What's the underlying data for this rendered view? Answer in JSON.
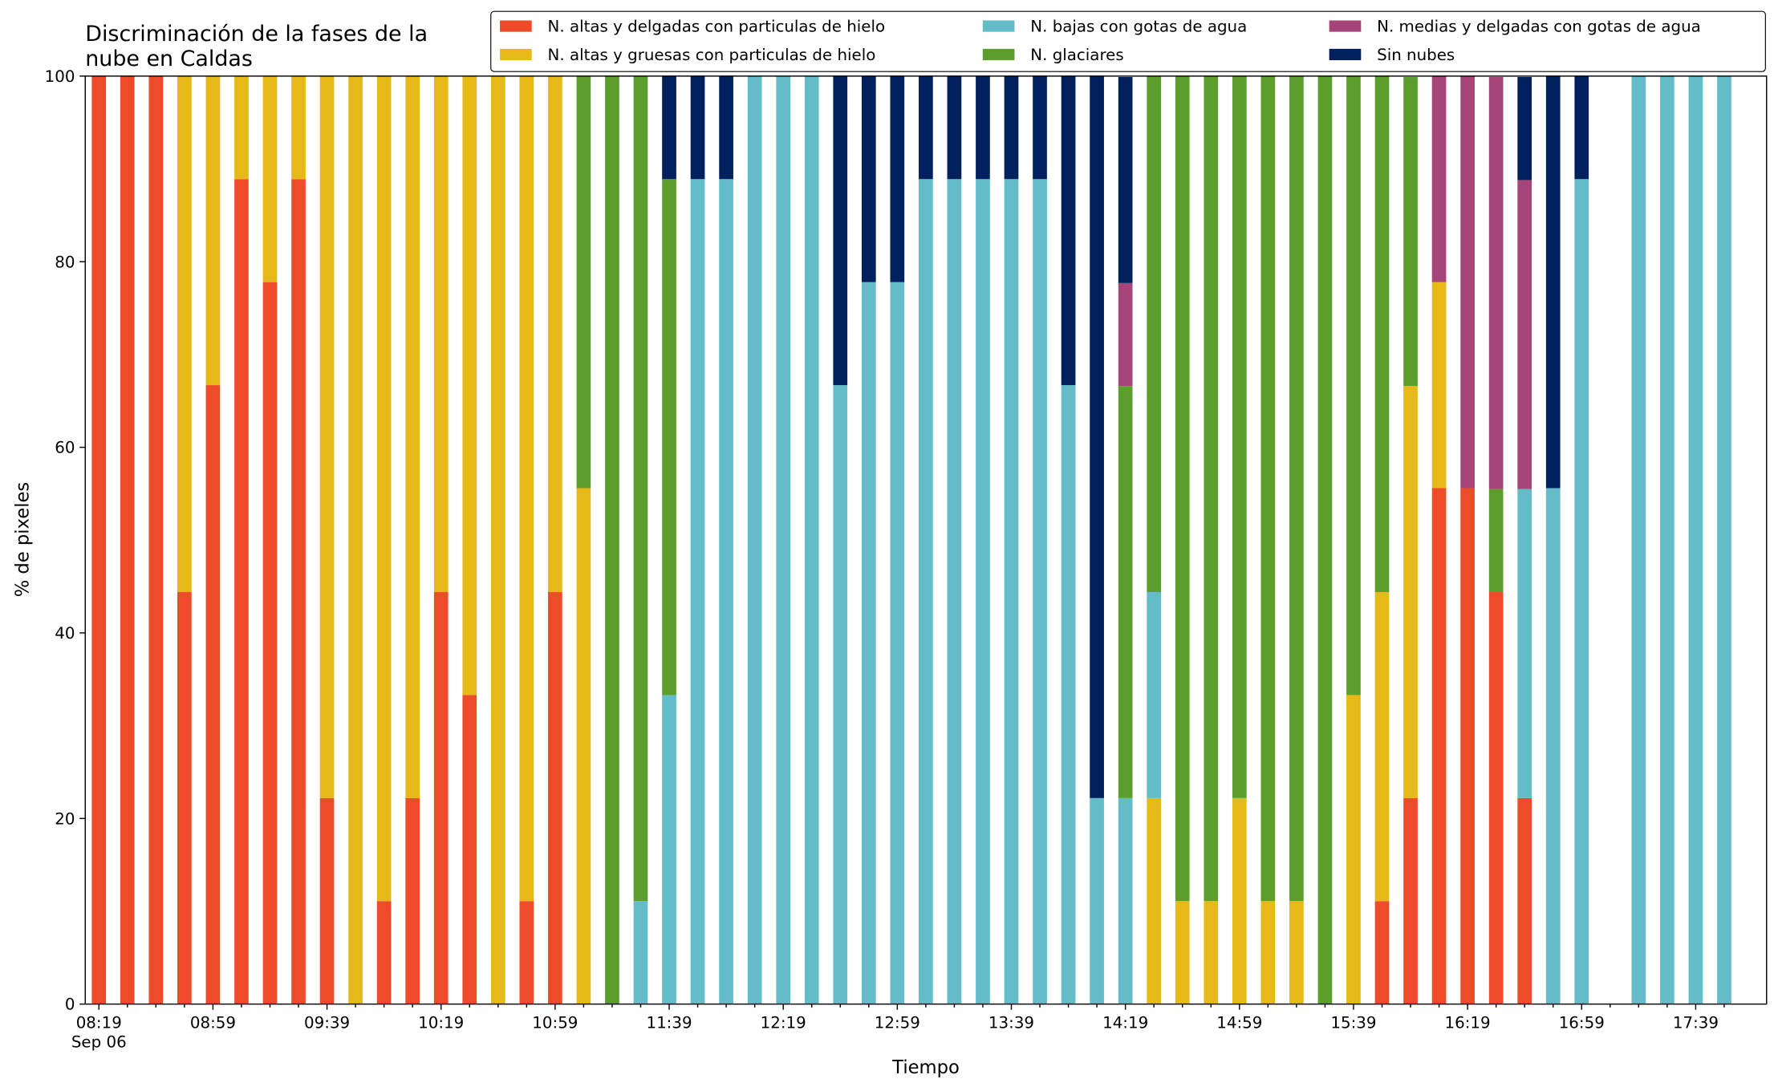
{
  "chart_data": {
    "type": "stacked_bar",
    "title": "Discriminación de la fases de la\nnube en Caldas",
    "xlabel": "Tiempo",
    "ylabel": "% de pixeles",
    "date_label": "Sep 06",
    "categories": [
      "08:19",
      null,
      null,
      null,
      "08:59",
      null,
      null,
      null,
      "09:39",
      null,
      null,
      null,
      "10:19",
      null,
      null,
      null,
      "10:59",
      null,
      null,
      null,
      "11:39",
      null,
      null,
      null,
      "12:19",
      null,
      null,
      null,
      "12:59",
      null,
      null,
      null,
      "13:39",
      null,
      null,
      null,
      "14:19",
      null,
      null,
      null,
      "14:59",
      null,
      null,
      null,
      "15:39",
      null,
      null,
      null,
      "16:19",
      null,
      null,
      null,
      "16:59",
      null,
      null,
      null,
      "17:39",
      null
    ],
    "ylim": [
      0,
      100
    ],
    "yticks": [
      0,
      20,
      40,
      60,
      80,
      100
    ],
    "series": [
      {
        "name": "N. altas y delgadas con particulas de hielo",
        "color": "#ee4b2b",
        "values": [
          100,
          100,
          100,
          44.4,
          66.7,
          88.9,
          77.8,
          88.9,
          22.2,
          0,
          11.1,
          22.2,
          44.4,
          33.3,
          0,
          11.1,
          44.4,
          0,
          0,
          0,
          0,
          0,
          0,
          0,
          0,
          0,
          0,
          0,
          0,
          0,
          0,
          0,
          0,
          0,
          0,
          0,
          0,
          0,
          0,
          0,
          0,
          0,
          0,
          0,
          0,
          11.1,
          22.2,
          55.6,
          55.6,
          44.4,
          22.2,
          0,
          0,
          0,
          0,
          0,
          0,
          0
        ]
      },
      {
        "name": "N. altas y gruesas con particulas de hielo",
        "color": "#e6b818",
        "values": [
          0,
          0,
          0,
          55.6,
          33.3,
          11.1,
          22.2,
          11.1,
          77.8,
          100,
          88.9,
          77.8,
          55.6,
          66.7,
          100,
          88.9,
          55.6,
          55.6,
          0,
          0,
          0,
          0,
          0,
          0,
          0,
          0,
          0,
          0,
          0,
          0,
          0,
          0,
          0,
          0,
          0,
          0,
          0,
          22.2,
          11.1,
          11.1,
          22.2,
          11.1,
          11.1,
          0,
          33.3,
          33.3,
          44.4,
          22.2,
          0,
          0,
          0,
          0,
          0,
          0,
          0,
          0,
          0,
          0
        ]
      },
      {
        "name": "N. bajas con gotas de agua",
        "color": "#62bdc8",
        "values": [
          0,
          0,
          0,
          0,
          0,
          0,
          0,
          0,
          0,
          0,
          0,
          0,
          0,
          0,
          0,
          0,
          0,
          0,
          0,
          11.1,
          33.3,
          88.9,
          88.9,
          100,
          100,
          100,
          66.7,
          77.8,
          77.8,
          88.9,
          88.9,
          88.9,
          88.9,
          88.9,
          66.7,
          22.2,
          22.2,
          22.2,
          0,
          0,
          0,
          0,
          0,
          0,
          0,
          0,
          0,
          0,
          0,
          0,
          33.3,
          55.6,
          88.9,
          0,
          100,
          100,
          100,
          100
        ]
      },
      {
        "name": "N. glaciares",
        "color": "#5c9e2c",
        "values": [
          0,
          0,
          0,
          0,
          0,
          0,
          0,
          0,
          0,
          0,
          0,
          0,
          0,
          0,
          0,
          0,
          0,
          44.4,
          100,
          88.9,
          55.6,
          0,
          0,
          0,
          0,
          0,
          0,
          0,
          0,
          0,
          0,
          0,
          0,
          0,
          0,
          0,
          44.4,
          55.6,
          88.9,
          88.9,
          77.8,
          88.9,
          88.9,
          100,
          66.7,
          55.6,
          33.3,
          0,
          0,
          11.1,
          0,
          0,
          0,
          0,
          0,
          0,
          0,
          0
        ]
      },
      {
        "name": "N. medias y delgadas con gotas de agua",
        "color": "#a5457a",
        "values": [
          0,
          0,
          0,
          0,
          0,
          0,
          0,
          0,
          0,
          0,
          0,
          0,
          0,
          0,
          0,
          0,
          0,
          0,
          0,
          0,
          0,
          0,
          0,
          0,
          0,
          0,
          0,
          0,
          0,
          0,
          0,
          0,
          0,
          0,
          0,
          0,
          11.1,
          0,
          0,
          0,
          0,
          0,
          0,
          0,
          0,
          0,
          0,
          22.2,
          44.4,
          44.4,
          33.3,
          0,
          0,
          0,
          0,
          0,
          0,
          0
        ]
      },
      {
        "name": "Sin nubes",
        "color": "#021f5e",
        "values": [
          0,
          0,
          0,
          0,
          0,
          0,
          0,
          0,
          0,
          0,
          0,
          0,
          0,
          0,
          0,
          0,
          0,
          0,
          0,
          0,
          11.1,
          11.1,
          11.1,
          0,
          0,
          0,
          33.3,
          22.2,
          22.2,
          11.1,
          11.1,
          11.1,
          11.1,
          11.1,
          33.3,
          77.8,
          22.2,
          0,
          0,
          0,
          0,
          0,
          0,
          0,
          0,
          0,
          0,
          0,
          0,
          0,
          11.1,
          44.4,
          11.1,
          0,
          0,
          0,
          0,
          0
        ]
      }
    ]
  }
}
